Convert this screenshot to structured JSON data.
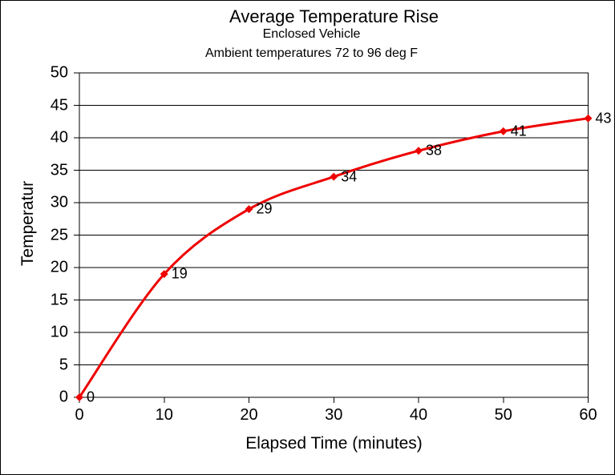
{
  "titles": {
    "title": "Average Temperature Rise",
    "subtitle": "Enclosed Vehicle",
    "subtitle2": "Ambient temperatures 72 to 96 deg F"
  },
  "chart_data": {
    "type": "line",
    "x": [
      0,
      10,
      20,
      30,
      40,
      50,
      60
    ],
    "values": [
      0,
      19,
      29,
      34,
      38,
      41,
      43
    ],
    "data_labels": [
      "0",
      "19",
      "29",
      "34",
      "38",
      "41",
      "43"
    ],
    "title": "Average Temperature Rise",
    "subtitle": "Enclosed Vehicle",
    "subtitle2": "Ambient temperatures 72 to 96 deg F",
    "xlabel": "Elapsed Time (minutes)",
    "ylabel": "Temperatur",
    "xlim": [
      0,
      60
    ],
    "ylim": [
      0,
      50
    ],
    "x_ticks": [
      0,
      10,
      20,
      30,
      40,
      50,
      60
    ],
    "y_ticks": [
      0,
      5,
      10,
      15,
      20,
      25,
      30,
      35,
      40,
      45,
      50
    ],
    "grid": "horizontal",
    "legend": "none",
    "line_color": "#ee0000",
    "marker": "diamond",
    "smoothed_line": true,
    "axis_color": "#000000",
    "background_color": "#ffffff"
  }
}
